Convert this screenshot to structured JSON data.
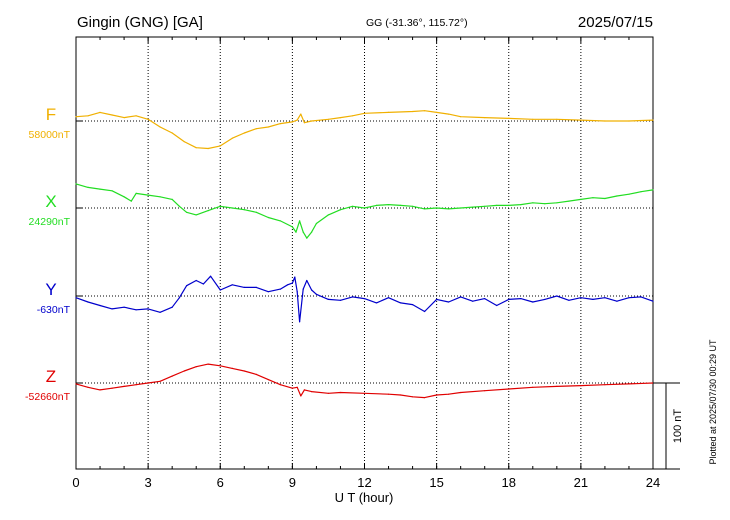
{
  "header": {
    "station": "Gingin (GNG)  [GA]",
    "coords": "GG (-31.36°, 115.72°)",
    "date": "2025/07/15"
  },
  "side_note": "Plotted at 2025/07/30 00:29 UT",
  "scale_label": "100 nT",
  "chart_data": {
    "type": "line",
    "xlabel": "U T (hour)",
    "xlim": [
      0,
      24
    ],
    "x_ticks": [
      "0",
      "3",
      "6",
      "9",
      "12",
      "15",
      "18",
      "21",
      "24"
    ],
    "scale_bar_nT": 100,
    "grid": true,
    "series": [
      {
        "name": "F",
        "baseline_label": "58000nT",
        "baseline": 58000,
        "color": "#f0b000",
        "x": [
          0,
          0.5,
          1.0,
          1.5,
          2.0,
          2.5,
          3.0,
          3.5,
          4.0,
          4.5,
          5.0,
          5.5,
          6.0,
          6.5,
          7.0,
          7.5,
          8.0,
          8.5,
          9.0,
          9.2,
          9.35,
          9.5,
          9.8,
          10.5,
          11.0,
          11.5,
          12.0,
          13.0,
          14.0,
          14.5,
          15.0,
          15.5,
          16.0,
          17.0,
          18.0,
          19.0,
          20.0,
          21.0,
          22.0,
          23.0,
          24.0
        ],
        "values": [
          58005,
          58006,
          58010,
          58007,
          58004,
          58006,
          58002,
          57993,
          57986,
          57976,
          57969,
          57968,
          57971,
          57980,
          57986,
          57991,
          57993,
          57997,
          57999,
          58001,
          58008,
          57998,
          58000,
          58002,
          58004,
          58006,
          58009,
          58010,
          58011,
          58012,
          58010,
          58008,
          58005,
          58004,
          58003,
          58002,
          58002,
          58001,
          58000,
          58000,
          58001
        ]
      },
      {
        "name": "X",
        "baseline_label": "24290nT",
        "baseline": 24290,
        "color": "#22dd22",
        "x": [
          0,
          0.5,
          1.0,
          1.5,
          2.0,
          2.3,
          2.5,
          3.0,
          3.5,
          4.0,
          4.3,
          4.6,
          5.0,
          5.5,
          6.0,
          6.5,
          7.0,
          7.5,
          8.0,
          8.5,
          9.0,
          9.15,
          9.3,
          9.45,
          9.6,
          9.8,
          10.0,
          10.5,
          11.0,
          11.5,
          12.0,
          12.5,
          13.0,
          13.5,
          14.0,
          14.5,
          15.0,
          15.5,
          16.0,
          16.5,
          17.0,
          17.5,
          18.0,
          18.5,
          19.0,
          19.5,
          20.0,
          20.5,
          21.0,
          21.5,
          22.0,
          22.5,
          23.0,
          23.5,
          24.0
        ],
        "values": [
          24318,
          24314,
          24312,
          24310,
          24303,
          24298,
          24307,
          24305,
          24303,
          24300,
          24292,
          24285,
          24282,
          24287,
          24292,
          24290,
          24288,
          24285,
          24279,
          24275,
          24268,
          24262,
          24275,
          24262,
          24255,
          24262,
          24272,
          24282,
          24288,
          24292,
          24290,
          24293,
          24294,
          24293,
          24292,
          24289,
          24290,
          24289,
          24290,
          24291,
          24292,
          24293,
          24293,
          24294,
          24296,
          24295,
          24296,
          24298,
          24300,
          24302,
          24301,
          24304,
          24306,
          24309,
          24311
        ]
      },
      {
        "name": "Y",
        "baseline_label": "-630nT",
        "baseline": -630,
        "color": "#0000cc",
        "x": [
          0,
          0.5,
          1.0,
          1.5,
          2.0,
          2.5,
          3.0,
          3.5,
          4.0,
          4.3,
          4.6,
          5.0,
          5.3,
          5.6,
          6.0,
          6.5,
          7.0,
          7.5,
          8.0,
          8.5,
          8.8,
          9.0,
          9.1,
          9.2,
          9.3,
          9.45,
          9.6,
          9.8,
          10.0,
          10.5,
          11.0,
          11.5,
          12.0,
          12.5,
          13.0,
          13.5,
          14.0,
          14.5,
          15.0,
          15.5,
          16.0,
          16.5,
          17.0,
          17.5,
          18.0,
          18.5,
          19.0,
          19.5,
          20.0,
          20.5,
          21.0,
          21.5,
          22.0,
          22.5,
          23.0,
          23.5,
          24.0
        ],
        "values": [
          -632,
          -637,
          -641,
          -645,
          -643,
          -646,
          -645,
          -649,
          -643,
          -632,
          -618,
          -612,
          -616,
          -607,
          -623,
          -617,
          -620,
          -620,
          -625,
          -622,
          -617,
          -615,
          -608,
          -625,
          -660,
          -622,
          -612,
          -623,
          -628,
          -634,
          -635,
          -631,
          -633,
          -638,
          -632,
          -638,
          -640,
          -648,
          -634,
          -637,
          -631,
          -636,
          -633,
          -641,
          -634,
          -633,
          -637,
          -634,
          -630,
          -635,
          -632,
          -634,
          -632,
          -636,
          -632,
          -631,
          -636
        ]
      },
      {
        "name": "Z",
        "baseline_label": "-52660nT",
        "baseline": -52660,
        "color": "#e00000",
        "x": [
          0,
          0.5,
          1.0,
          1.5,
          2.0,
          2.5,
          3.0,
          3.5,
          4.0,
          4.5,
          5.0,
          5.5,
          6.0,
          6.5,
          7.0,
          7.5,
          8.0,
          8.5,
          9.0,
          9.2,
          9.35,
          9.5,
          9.8,
          10.5,
          11.0,
          12.0,
          13.0,
          13.5,
          14.0,
          14.5,
          15.0,
          15.5,
          16.0,
          17.0,
          18.0,
          19.0,
          20.0,
          21.0,
          22.0,
          23.0,
          24.0
        ],
        "values": [
          -52661,
          -52665,
          -52668,
          -52666,
          -52664,
          -52662,
          -52660,
          -52658,
          -52652,
          -52646,
          -52641,
          -52638,
          -52640,
          -52643,
          -52646,
          -52650,
          -52656,
          -52662,
          -52666,
          -52665,
          -52675,
          -52668,
          -52670,
          -52672,
          -52671,
          -52672,
          -52673,
          -52674,
          -52676,
          -52677,
          -52674,
          -52673,
          -52671,
          -52669,
          -52667,
          -52665,
          -52664,
          -52663,
          -52662,
          -52661,
          -52660
        ]
      }
    ]
  }
}
